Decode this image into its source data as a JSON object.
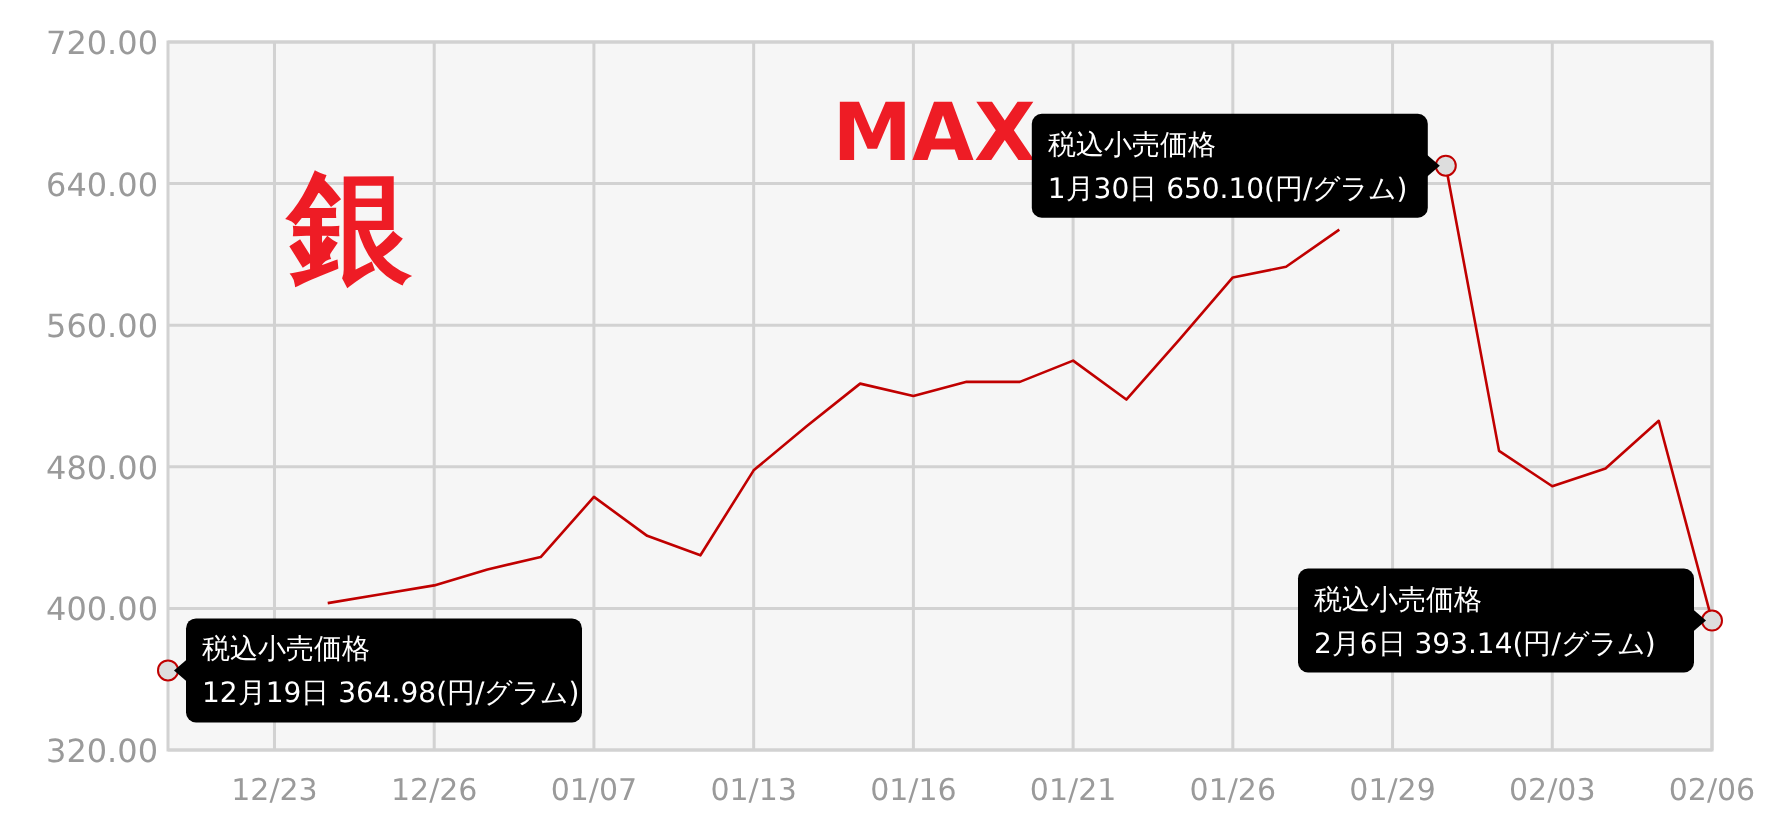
{
  "chart_data": {
    "type": "line",
    "color": "#c00000",
    "categories": [
      null,
      null,
      "12/23",
      null,
      null,
      "12/26",
      null,
      null,
      "01/07",
      null,
      null,
      "01/13",
      null,
      null,
      "01/16",
      null,
      null,
      "01/21",
      null,
      null,
      "01/26",
      null,
      null,
      "01/29",
      null,
      null,
      "02/03",
      null,
      null,
      "02/06"
    ],
    "values": [
      364.98,
      null,
      null,
      403,
      408,
      413,
      422,
      429,
      463,
      441,
      430,
      478,
      503,
      527,
      520,
      528,
      528,
      540,
      518,
      552,
      587,
      593,
      614,
      null,
      650.1,
      489,
      469,
      479,
      506,
      393.14
    ],
    "ylim": [
      320,
      720
    ],
    "yticks": [
      {
        "value": 320,
        "label": "320.00"
      },
      {
        "value": 400,
        "label": "400.00"
      },
      {
        "value": 480,
        "label": "480.00"
      },
      {
        "value": 560,
        "label": "560.00"
      },
      {
        "value": 640,
        "label": "640.00"
      },
      {
        "value": 720,
        "label": "720.00"
      }
    ],
    "grid": true,
    "marker": "none",
    "line_style": "solid",
    "annotations": [
      "銀",
      "MAX",
      "税込小売価格\n12月19日 364.98(円/グラム)",
      "税込小売価格\n1月30日 650.10(円/グラム)",
      "税込小売価格\n2月6日 393.14(円/グラム)"
    ]
  }
}
